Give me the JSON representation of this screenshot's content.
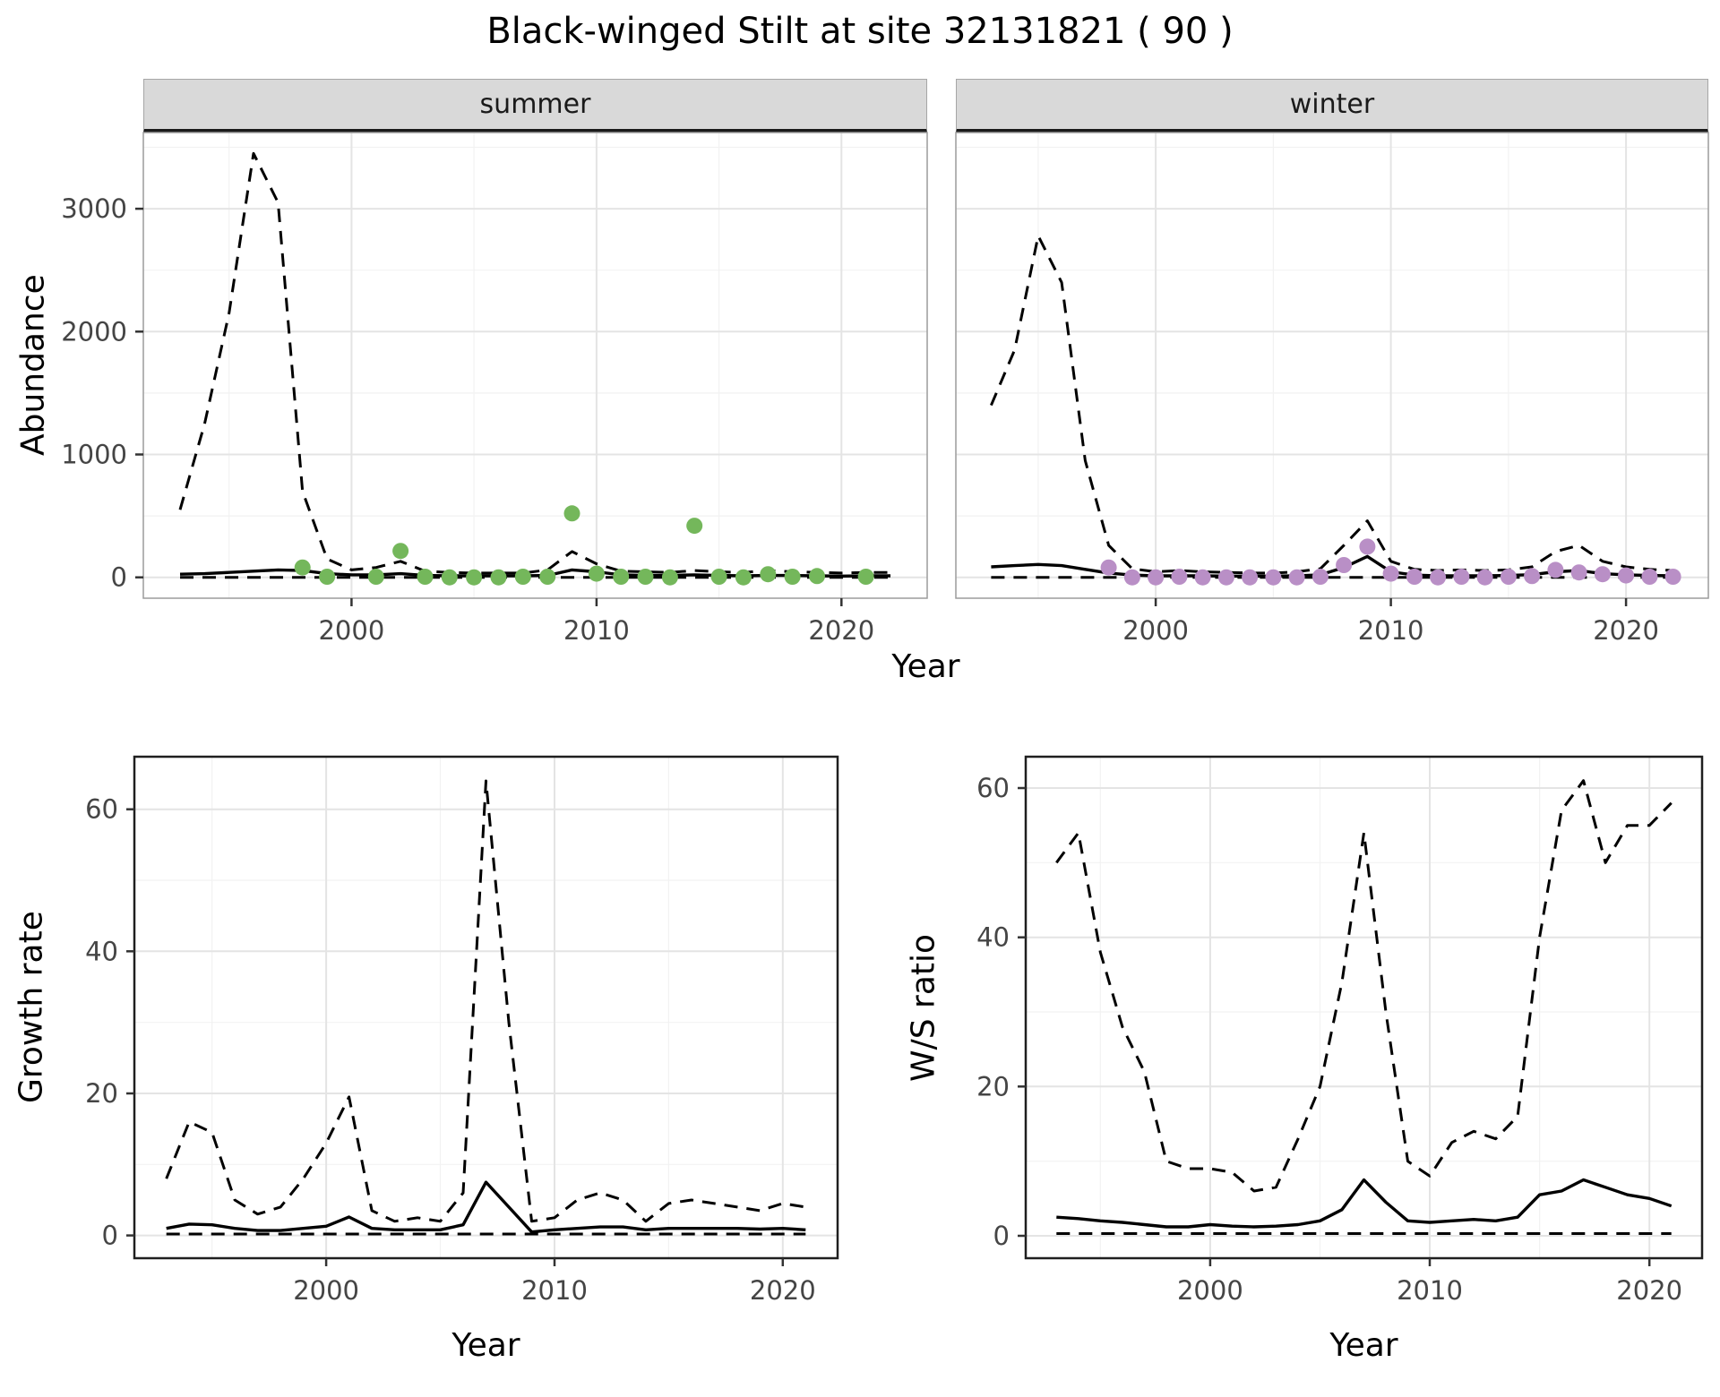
{
  "title": "Black-winged Stilt at site 32131821 ( 90 )",
  "axes": {
    "abundance": "Abundance",
    "year": "Year",
    "growth": "Growth rate",
    "ws": "W/S ratio"
  },
  "facets": {
    "summer": "summer",
    "winter": "winter"
  },
  "colors": {
    "summer_points": "#74b75b",
    "winter_points": "#b98fc6",
    "line": "#000000",
    "strip_bg": "#d9d9d9",
    "grid_major": "#e4e4e4",
    "grid_minor": "#f2f2f2"
  },
  "chart_data": [
    {
      "id": "abundance-summer",
      "type": "line",
      "facet": "summer",
      "xlabel": "Year",
      "ylabel": "Abundance",
      "xlim": [
        1991.5,
        2023.5
      ],
      "ylim": [
        -170,
        3620
      ],
      "x_ticks": [
        2000,
        2010,
        2020
      ],
      "y_ticks": [
        0,
        1000,
        2000,
        3000
      ],
      "grid": true,
      "x": [
        1993,
        1994,
        1995,
        1996,
        1997,
        1998,
        1999,
        2000,
        2001,
        2002,
        2003,
        2004,
        2005,
        2006,
        2007,
        2008,
        2009,
        2010,
        2011,
        2012,
        2013,
        2014,
        2015,
        2016,
        2017,
        2018,
        2019,
        2020,
        2021,
        2022
      ],
      "series": [
        {
          "name": "upper-confidence",
          "style": "dashed",
          "y": [
            550,
            1250,
            2150,
            3450,
            3050,
            700,
            150,
            60,
            80,
            130,
            50,
            40,
            35,
            35,
            35,
            60,
            210,
            110,
            50,
            45,
            40,
            55,
            45,
            40,
            55,
            45,
            40,
            35,
            40,
            40
          ]
        },
        {
          "name": "model-fit",
          "style": "solid",
          "y": [
            25,
            30,
            40,
            50,
            60,
            55,
            30,
            20,
            20,
            30,
            15,
            12,
            12,
            12,
            12,
            15,
            60,
            45,
            20,
            15,
            15,
            20,
            15,
            12,
            15,
            15,
            12,
            10,
            12,
            12
          ]
        },
        {
          "name": "lower-confidence",
          "style": "dashed",
          "y": [
            0,
            0,
            0,
            0,
            0,
            0,
            0,
            0,
            0,
            0,
            0,
            0,
            0,
            0,
            0,
            0,
            0,
            0,
            0,
            0,
            0,
            0,
            0,
            0,
            0,
            0,
            0,
            0,
            0,
            0
          ]
        }
      ],
      "points": {
        "name": "observed-counts-summer",
        "color": "#74b75b",
        "x": [
          1998,
          1999,
          2001,
          2002,
          2003,
          2004,
          2005,
          2006,
          2007,
          2008,
          2009,
          2010,
          2011,
          2012,
          2013,
          2014,
          2015,
          2016,
          2017,
          2018,
          2019,
          2021
        ],
        "y": [
          80,
          5,
          5,
          215,
          5,
          0,
          0,
          0,
          5,
          5,
          520,
          30,
          5,
          5,
          0,
          420,
          5,
          0,
          25,
          5,
          10,
          5
        ]
      }
    },
    {
      "id": "abundance-winter",
      "type": "line",
      "facet": "winter",
      "xlabel": "Year",
      "ylabel": "Abundance",
      "xlim": [
        1991.5,
        2023.5
      ],
      "ylim": [
        -170,
        3620
      ],
      "x_ticks": [
        2000,
        2010,
        2020
      ],
      "y_ticks": [
        0,
        1000,
        2000,
        3000
      ],
      "grid": true,
      "x": [
        1993,
        1994,
        1995,
        1996,
        1997,
        1998,
        1999,
        2000,
        2001,
        2002,
        2003,
        2004,
        2005,
        2006,
        2007,
        2008,
        2009,
        2010,
        2011,
        2012,
        2013,
        2014,
        2015,
        2016,
        2017,
        2018,
        2019,
        2020,
        2021,
        2022
      ],
      "series": [
        {
          "name": "upper-confidence",
          "style": "dashed",
          "y": [
            1400,
            1850,
            2780,
            2400,
            950,
            260,
            70,
            45,
            55,
            45,
            40,
            35,
            35,
            45,
            70,
            260,
            460,
            130,
            65,
            55,
            60,
            55,
            60,
            85,
            210,
            260,
            130,
            85,
            65,
            55
          ]
        },
        {
          "name": "model-fit",
          "style": "solid",
          "y": [
            85,
            95,
            105,
            95,
            65,
            35,
            18,
            12,
            12,
            12,
            10,
            10,
            10,
            12,
            20,
            80,
            170,
            45,
            18,
            12,
            12,
            12,
            15,
            22,
            45,
            55,
            30,
            20,
            15,
            12
          ]
        },
        {
          "name": "lower-confidence",
          "style": "dashed",
          "y": [
            0,
            0,
            0,
            0,
            0,
            0,
            0,
            0,
            0,
            0,
            0,
            0,
            0,
            0,
            0,
            0,
            0,
            0,
            0,
            0,
            0,
            0,
            0,
            0,
            0,
            0,
            0,
            0,
            0,
            0
          ]
        }
      ],
      "points": {
        "name": "observed-counts-winter",
        "color": "#b98fc6",
        "x": [
          1998,
          1999,
          2000,
          2001,
          2002,
          2003,
          2004,
          2005,
          2006,
          2007,
          2008,
          2009,
          2010,
          2011,
          2012,
          2013,
          2014,
          2015,
          2016,
          2017,
          2018,
          2019,
          2020,
          2021,
          2022
        ],
        "y": [
          80,
          0,
          0,
          5,
          0,
          0,
          0,
          0,
          0,
          5,
          100,
          250,
          30,
          5,
          0,
          5,
          0,
          5,
          10,
          60,
          40,
          25,
          15,
          5,
          5
        ]
      }
    },
    {
      "id": "growth-rate",
      "type": "line",
      "xlabel": "Year",
      "ylabel": "Growth rate",
      "xlim": [
        1991.6,
        2022.4
      ],
      "ylim": [
        -3.2,
        67.4
      ],
      "x_ticks": [
        2000,
        2010,
        2020
      ],
      "y_ticks": [
        0,
        20,
        40,
        60
      ],
      "grid": true,
      "x": [
        1993,
        1994,
        1995,
        1996,
        1997,
        1998,
        1999,
        2000,
        2001,
        2002,
        2003,
        2004,
        2005,
        2006,
        2007,
        2008,
        2009,
        2010,
        2011,
        2012,
        2013,
        2014,
        2015,
        2016,
        2017,
        2018,
        2019,
        2020,
        2021
      ],
      "series": [
        {
          "name": "upper-confidence",
          "style": "dashed",
          "y": [
            8,
            16,
            14.5,
            5,
            3,
            4,
            8,
            13,
            19.5,
            3.5,
            2,
            2.5,
            2,
            6,
            64,
            30,
            2,
            2.5,
            5,
            6,
            5,
            2,
            4.5,
            5,
            4.5,
            4,
            3.5,
            4.5,
            4
          ]
        },
        {
          "name": "model-fit",
          "style": "solid",
          "y": [
            1,
            1.6,
            1.5,
            1,
            0.7,
            0.7,
            1,
            1.3,
            2.6,
            1,
            0.8,
            0.8,
            0.8,
            1.5,
            7.5,
            4,
            0.5,
            0.8,
            1,
            1.2,
            1.2,
            0.8,
            1,
            1,
            1,
            1,
            0.9,
            1,
            0.8
          ]
        },
        {
          "name": "lower-confidence",
          "style": "dashed",
          "y": [
            0.2,
            0.2,
            0.2,
            0.2,
            0.2,
            0.2,
            0.2,
            0.2,
            0.2,
            0.2,
            0.2,
            0.2,
            0.2,
            0.2,
            0.2,
            0.2,
            0.2,
            0.2,
            0.2,
            0.2,
            0.2,
            0.2,
            0.2,
            0.2,
            0.2,
            0.2,
            0.2,
            0.2,
            0.2
          ]
        }
      ]
    },
    {
      "id": "ws-ratio",
      "type": "line",
      "xlabel": "Year",
      "ylabel": "W/S ratio",
      "xlim": [
        1991.6,
        2022.4
      ],
      "ylim": [
        -3,
        64.2
      ],
      "x_ticks": [
        2000,
        2010,
        2020
      ],
      "y_ticks": [
        0,
        20,
        40,
        60
      ],
      "grid": true,
      "x": [
        1993,
        1994,
        1995,
        1996,
        1997,
        1998,
        1999,
        2000,
        2001,
        2002,
        2003,
        2004,
        2005,
        2006,
        2007,
        2008,
        2009,
        2010,
        2011,
        2012,
        2013,
        2014,
        2015,
        2016,
        2017,
        2018,
        2019,
        2020,
        2021
      ],
      "series": [
        {
          "name": "upper-confidence",
          "style": "dashed",
          "y": [
            50,
            54,
            38,
            28,
            22,
            10,
            9,
            9,
            8.5,
            6,
            6.5,
            13,
            20,
            34,
            54,
            30,
            10,
            8,
            12.5,
            14,
            13,
            16,
            40,
            57,
            61,
            50,
            55,
            55,
            58
          ]
        },
        {
          "name": "model-fit",
          "style": "solid",
          "y": [
            2.5,
            2.3,
            2,
            1.8,
            1.5,
            1.2,
            1.2,
            1.5,
            1.3,
            1.2,
            1.3,
            1.5,
            2,
            3.5,
            7.5,
            4.5,
            2,
            1.8,
            2,
            2.2,
            2,
            2.5,
            5.5,
            6,
            7.5,
            6.5,
            5.5,
            5,
            4
          ]
        },
        {
          "name": "lower-confidence",
          "style": "dashed",
          "y": [
            0.3,
            0.3,
            0.3,
            0.3,
            0.3,
            0.3,
            0.3,
            0.3,
            0.3,
            0.3,
            0.3,
            0.3,
            0.3,
            0.3,
            0.3,
            0.3,
            0.3,
            0.3,
            0.3,
            0.3,
            0.3,
            0.3,
            0.3,
            0.3,
            0.3,
            0.3,
            0.3,
            0.3,
            0.3
          ]
        }
      ]
    }
  ]
}
